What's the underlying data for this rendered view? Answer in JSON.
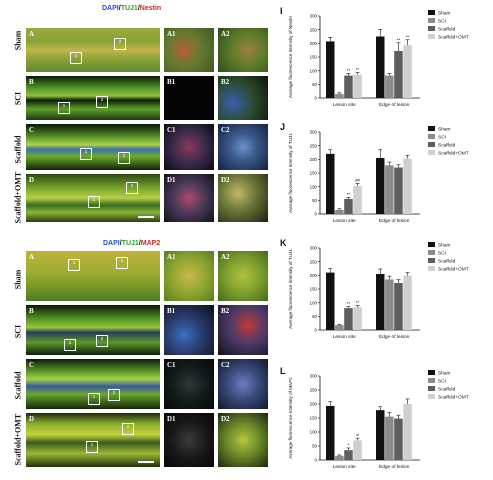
{
  "figure_top": {
    "stain": [
      {
        "text": "DAPI",
        "color": "#1f4fd8"
      },
      {
        "text": "/",
        "color": "#222"
      },
      {
        "text": "TUJ1",
        "color": "#2b9e2b"
      },
      {
        "text": "/",
        "color": "#222"
      },
      {
        "text": "Nestin",
        "color": "#d6261f"
      }
    ],
    "rows": [
      {
        "label": "Sham",
        "panel": "A",
        "z1": "A1",
        "z2": "A2",
        "boxes": [
          "1",
          "2"
        ]
      },
      {
        "label": "SCI",
        "panel": "B",
        "z1": "B1",
        "z2": "B2",
        "boxes": [
          "1",
          "2"
        ]
      },
      {
        "label": "Scaffold",
        "panel": "C",
        "z1": "C1",
        "z2": "C2",
        "boxes": [
          "1",
          "2"
        ]
      },
      {
        "label": "Scaffold+OMT",
        "panel": "D",
        "z1": "D1",
        "z2": "D2",
        "boxes": [
          "1",
          "2"
        ]
      }
    ]
  },
  "figure_bottom": {
    "stain": [
      {
        "text": "DAPI",
        "color": "#1f4fd8"
      },
      {
        "text": "/",
        "color": "#222"
      },
      {
        "text": "TUJ1",
        "color": "#2b9e2b"
      },
      {
        "text": "/",
        "color": "#222"
      },
      {
        "text": "MAP2",
        "color": "#d6261f"
      }
    ],
    "rows": [
      {
        "label": "Sham",
        "panel": "A",
        "z1": "A1",
        "z2": "A2",
        "boxes": [
          "1",
          "2"
        ]
      },
      {
        "label": "SCI",
        "panel": "B",
        "z1": "B1",
        "z2": "B2",
        "boxes": [
          "1",
          "2"
        ]
      },
      {
        "label": "Scaffold",
        "panel": "C",
        "z1": "C1",
        "z2": "C2",
        "boxes": [
          "1",
          "2"
        ]
      },
      {
        "label": "Scaffold+OMT",
        "panel": "D",
        "z1": "D1",
        "z2": "D2",
        "boxes": [
          "1",
          "2"
        ]
      }
    ]
  },
  "colors": {
    "sham": "#111111",
    "sci": "#8c8c8c",
    "scaffold": "#5e5e5e",
    "scaffold_omt": "#cfcfcf"
  },
  "chart_data": [
    {
      "type": "bar",
      "panel": "I",
      "ylabel": "Average fluorescence intensity of Nestin",
      "categories": [
        "Lesion site",
        "Edge of lesion"
      ],
      "ylim": [
        0,
        300
      ],
      "yticks": [
        0,
        50,
        100,
        150,
        200,
        250,
        300
      ],
      "series": [
        {
          "name": "Sham",
          "values": [
            207,
            225
          ],
          "err": [
            15,
            25
          ]
        },
        {
          "name": "SCI",
          "values": [
            15,
            82
          ],
          "err": [
            4,
            8
          ]
        },
        {
          "name": "Scaffold",
          "values": [
            82,
            172
          ],
          "err": [
            8,
            30
          ]
        },
        {
          "name": "Scaffold+OMT",
          "values": [
            85,
            193
          ],
          "err": [
            8,
            20
          ]
        }
      ],
      "annotations": [
        [
          "",
          "",
          "**",
          "**"
        ],
        [
          "",
          "",
          "**",
          "**"
        ]
      ]
    },
    {
      "type": "bar",
      "panel": "J",
      "ylabel": "Average fluorescence intensity of TUJ1",
      "categories": [
        "Lesion site",
        "Edge of lesion"
      ],
      "ylim": [
        0,
        300
      ],
      "yticks": [
        0,
        50,
        100,
        150,
        200,
        250,
        300
      ],
      "series": [
        {
          "name": "Sham",
          "values": [
            220,
            205
          ],
          "err": [
            15,
            30
          ]
        },
        {
          "name": "SCI",
          "values": [
            15,
            178
          ],
          "err": [
            4,
            12
          ]
        },
        {
          "name": "Scaffold",
          "values": [
            55,
            170
          ],
          "err": [
            6,
            10
          ]
        },
        {
          "name": "Scaffold+OMT",
          "values": [
            102,
            203
          ],
          "err": [
            10,
            12
          ]
        }
      ],
      "annotations": [
        [
          "",
          "",
          "**",
          "##"
        ],
        [
          "",
          "",
          "",
          ""
        ]
      ]
    },
    {
      "type": "bar",
      "panel": "K",
      "ylabel": "Average fluorescence intensity of TUJ1",
      "categories": [
        "Lesion site",
        "Edge of lesion"
      ],
      "ylim": [
        0,
        300
      ],
      "yticks": [
        0,
        50,
        100,
        150,
        200,
        250,
        300
      ],
      "series": [
        {
          "name": "Sham",
          "values": [
            210,
            205
          ],
          "err": [
            15,
            18
          ]
        },
        {
          "name": "SCI",
          "values": [
            18,
            185
          ],
          "err": [
            3,
            12
          ]
        },
        {
          "name": "Scaffold",
          "values": [
            80,
            172
          ],
          "err": [
            6,
            12
          ]
        },
        {
          "name": "Scaffold+OMT",
          "values": [
            83,
            198
          ],
          "err": [
            6,
            12
          ]
        }
      ],
      "annotations": [
        [
          "",
          "",
          "**",
          "**"
        ],
        [
          "",
          "",
          "",
          ""
        ]
      ]
    },
    {
      "type": "bar",
      "panel": "L",
      "ylabel": "Average fluorescence intensity of MAP2",
      "categories": [
        "Lesion site",
        "Edge of lesion"
      ],
      "ylim": [
        0,
        300
      ],
      "yticks": [
        0,
        50,
        100,
        150,
        200,
        250,
        300
      ],
      "series": [
        {
          "name": "Sham",
          "values": [
            193,
            178
          ],
          "err": [
            15,
            12
          ]
        },
        {
          "name": "SCI",
          "values": [
            15,
            155
          ],
          "err": [
            3,
            15
          ]
        },
        {
          "name": "Scaffold",
          "values": [
            35,
            148
          ],
          "err": [
            8,
            12
          ]
        },
        {
          "name": "Scaffold+OMT",
          "values": [
            70,
            200
          ],
          "err": [
            8,
            18
          ]
        }
      ],
      "annotations": [
        [
          "",
          "",
          "*",
          "#"
        ],
        [
          "",
          "",
          "",
          ""
        ]
      ]
    }
  ]
}
